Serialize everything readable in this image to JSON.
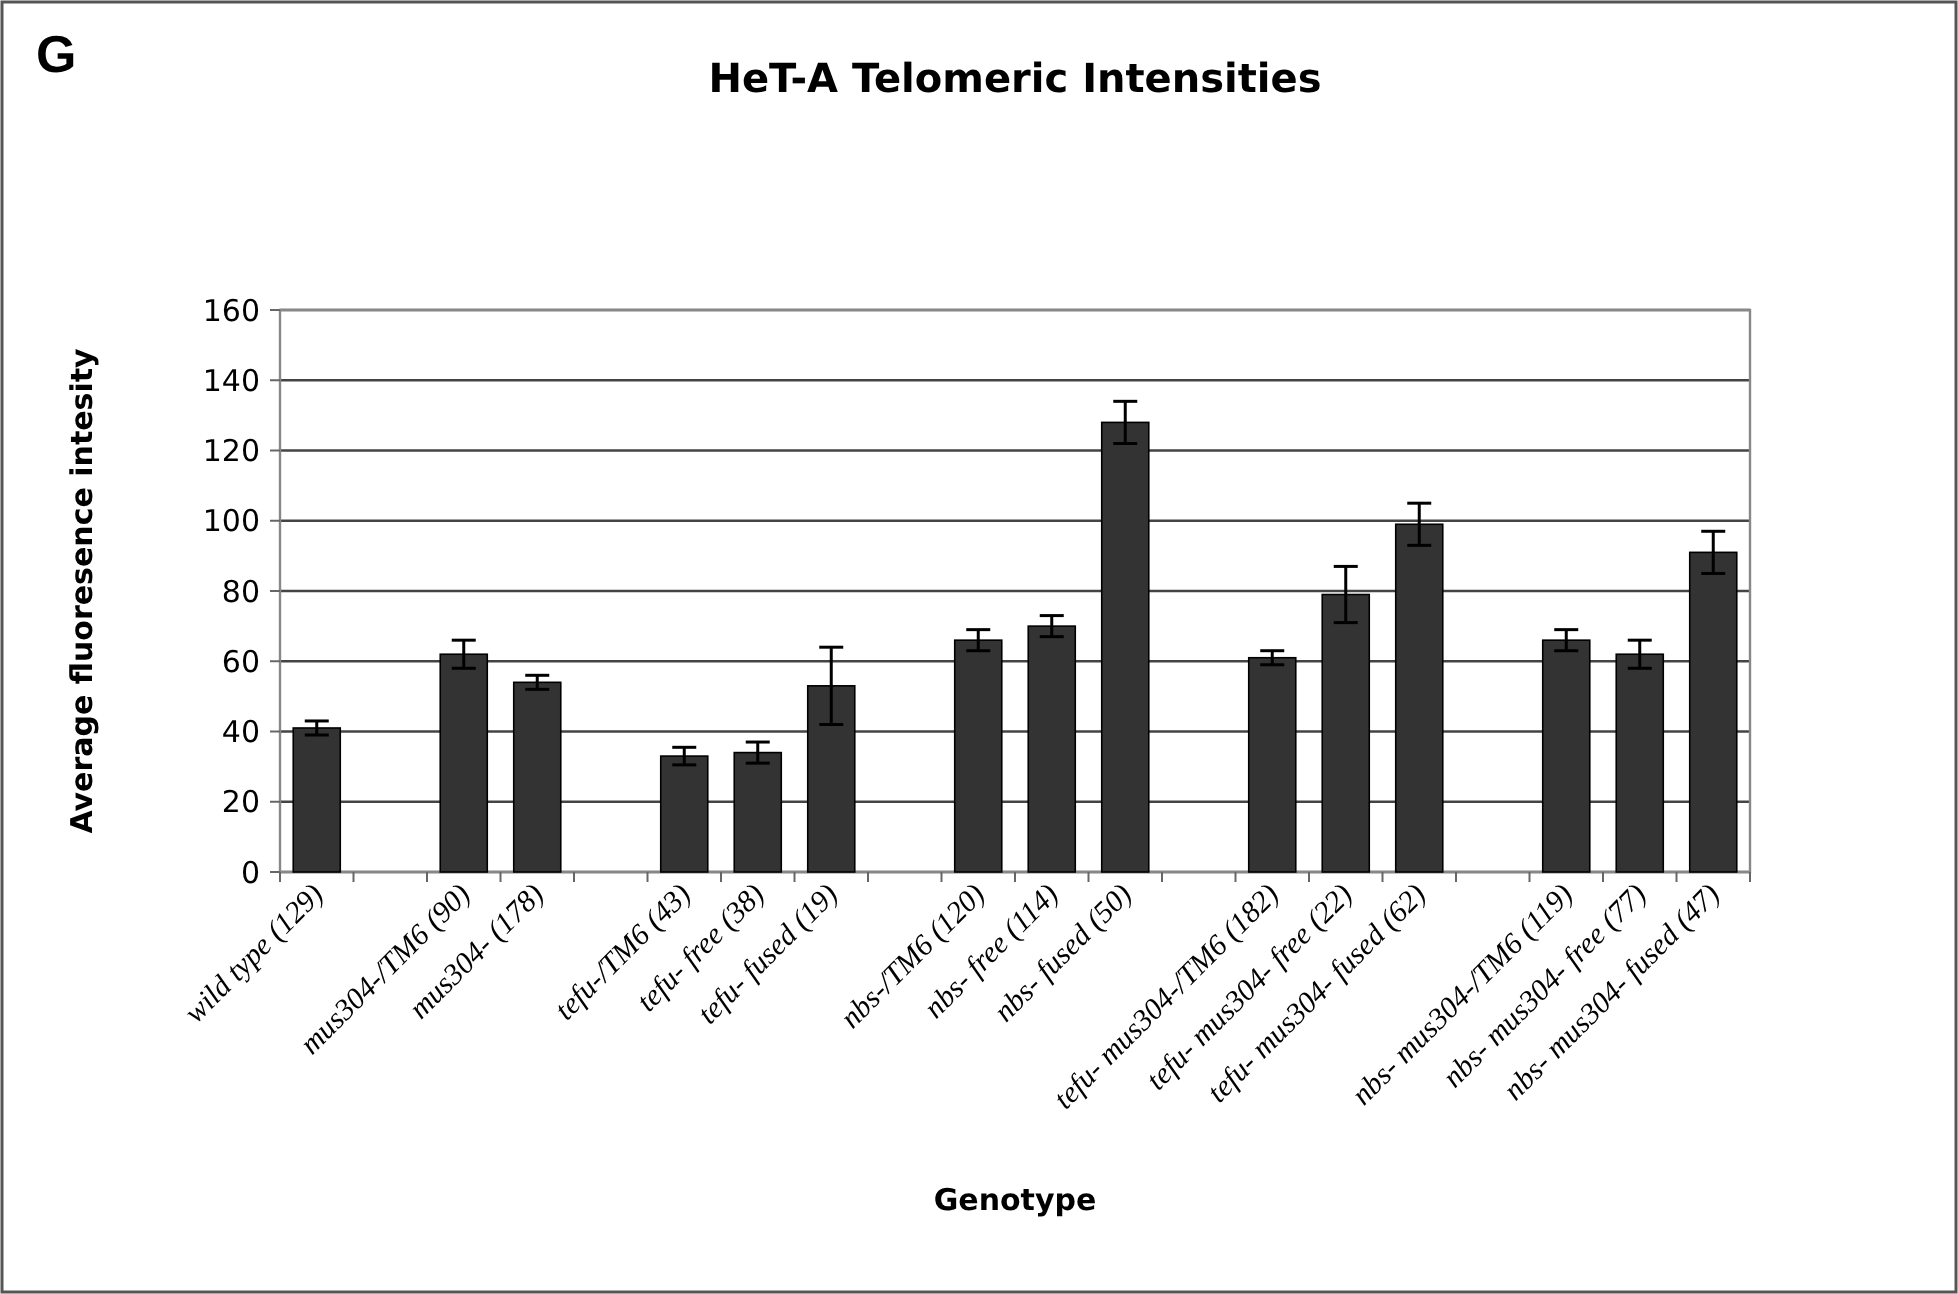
{
  "chart_data": {
    "type": "bar",
    "title": "HeT-A Telomeric Intensities",
    "xlabel": "Genotype",
    "ylabel": "Average fluoresence intesity",
    "annotations": [
      "G"
    ],
    "categories": [
      "wild type (129)",
      null,
      "mus304-/TM6 (90)",
      "mus304- (178)",
      null,
      "tefu-/TM6 (43)",
      "tefu- free (38)",
      "tefu- fused (19)",
      null,
      "nbs-/TM6 (120)",
      "nbs- free (114)",
      "nbs- fused (50)",
      null,
      "tefu- mus304-/TM6 (182)",
      "tefu- mus304- free (22)",
      "tefu- mus304- fused (62)",
      null,
      "nbs- mus304-/TM6 (119)",
      "nbs- mus304- free (77)",
      "nbs- mus304- fused (47)"
    ],
    "values": [
      41,
      null,
      62,
      54,
      null,
      33,
      34,
      53,
      null,
      66,
      70,
      128,
      null,
      61,
      79,
      99,
      null,
      66,
      62,
      91
    ],
    "errors": [
      2,
      null,
      4,
      2,
      null,
      2.5,
      3,
      11,
      null,
      3,
      3,
      6,
      null,
      2,
      8,
      6,
      null,
      3,
      4,
      6
    ],
    "color": "#333333",
    "ylim": [
      0,
      160
    ],
    "yticks": [
      0,
      20,
      40,
      60,
      80,
      100,
      120,
      140,
      160
    ],
    "grid": "y"
  }
}
